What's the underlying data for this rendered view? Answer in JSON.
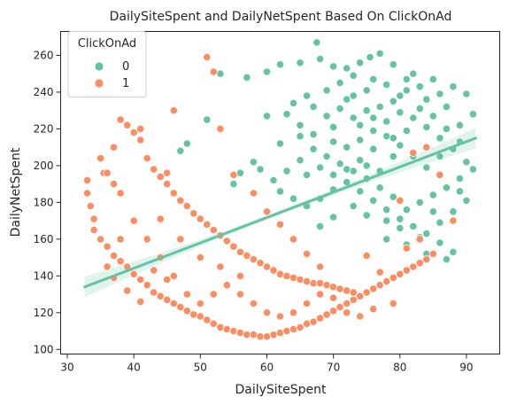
{
  "chart_data": {
    "type": "scatter",
    "title": "DailySiteSpent and DailyNetSpent Based On ClickOnAd",
    "xlabel": "DailySiteSpent",
    "ylabel": "DailyNetSpent",
    "xlim": [
      29,
      95
    ],
    "ylim": [
      97.5,
      273
    ],
    "xticks": [
      30,
      40,
      50,
      60,
      70,
      80,
      90
    ],
    "yticks": [
      100,
      120,
      140,
      160,
      180,
      200,
      220,
      240,
      260
    ],
    "grid": false,
    "legend": {
      "title": "ClickOnAd",
      "position": "top-left"
    },
    "regression_line": {
      "x": [
        32.6,
        91.4
      ],
      "y": [
        134,
        215
      ],
      "color": "#66c2a5"
    },
    "series": [
      {
        "name": "0",
        "color": "#66c2a5",
        "points": [
          [
            67.5,
            267
          ],
          [
            77,
            261
          ],
          [
            75.5,
            259
          ],
          [
            74,
            256
          ],
          [
            68,
            258
          ],
          [
            65,
            256
          ],
          [
            62,
            255
          ],
          [
            60,
            251
          ],
          [
            70,
            254
          ],
          [
            72,
            253
          ],
          [
            79,
            255
          ],
          [
            82,
            250
          ],
          [
            85,
            247
          ],
          [
            88,
            243
          ],
          [
            90,
            239
          ],
          [
            91,
            228
          ],
          [
            89,
            222
          ],
          [
            87,
            232
          ],
          [
            84,
            236
          ],
          [
            81,
            241
          ],
          [
            78,
            244
          ],
          [
            76,
            247
          ],
          [
            73,
            249
          ],
          [
            71,
            245
          ],
          [
            69,
            241
          ],
          [
            66,
            238
          ],
          [
            64,
            234
          ],
          [
            63,
            228
          ],
          [
            65,
            222
          ],
          [
            67,
            217
          ],
          [
            70,
            213
          ],
          [
            72,
            210
          ],
          [
            74,
            214
          ],
          [
            76,
            219
          ],
          [
            78,
            224
          ],
          [
            80,
            229
          ],
          [
            82,
            226
          ],
          [
            84,
            221
          ],
          [
            86,
            215
          ],
          [
            88,
            209
          ],
          [
            90,
            202
          ],
          [
            91,
            198
          ],
          [
            89,
            193
          ],
          [
            87,
            188
          ],
          [
            85,
            184
          ],
          [
            83,
            180
          ],
          [
            81,
            176
          ],
          [
            79,
            183
          ],
          [
            77,
            188
          ],
          [
            75,
            193
          ],
          [
            73,
            197
          ],
          [
            71,
            201
          ],
          [
            69,
            205
          ],
          [
            67,
            209
          ],
          [
            65,
            203
          ],
          [
            63,
            197
          ],
          [
            61,
            192
          ],
          [
            62,
            186
          ],
          [
            64,
            182
          ],
          [
            66,
            178
          ],
          [
            68,
            182
          ],
          [
            70,
            187
          ],
          [
            72,
            191
          ],
          [
            74,
            186
          ],
          [
            76,
            181
          ],
          [
            78,
            176
          ],
          [
            80,
            171
          ],
          [
            82,
            167
          ],
          [
            84,
            163
          ],
          [
            86,
            169
          ],
          [
            88,
            175
          ],
          [
            90,
            181
          ],
          [
            79,
            235
          ],
          [
            75,
            230
          ],
          [
            73,
            226
          ],
          [
            71,
            231
          ],
          [
            69,
            227
          ],
          [
            67,
            232
          ],
          [
            75,
            241
          ],
          [
            80,
            238
          ],
          [
            83,
            231
          ],
          [
            85,
            227
          ],
          [
            87,
            220
          ],
          [
            89,
            213
          ],
          [
            86,
            205
          ],
          [
            84,
            199
          ],
          [
            82,
            205
          ],
          [
            80,
            211
          ],
          [
            78,
            216
          ],
          [
            76,
            209
          ],
          [
            74,
            203
          ],
          [
            72,
            198
          ],
          [
            70,
            195
          ],
          [
            68,
            199
          ],
          [
            66,
            195
          ],
          [
            58,
            202
          ],
          [
            56,
            196
          ],
          [
            55,
            190
          ],
          [
            59,
            198
          ],
          [
            60,
            227
          ],
          [
            57,
            248
          ],
          [
            53,
            250
          ],
          [
            51,
            225
          ],
          [
            48,
            212
          ],
          [
            47,
            208
          ],
          [
            73,
            238
          ],
          [
            77,
            232
          ],
          [
            81,
            219
          ],
          [
            79,
            205
          ],
          [
            77,
            197
          ],
          [
            75,
            173
          ],
          [
            73,
            178
          ],
          [
            70,
            172
          ],
          [
            68,
            167
          ],
          [
            78,
            160
          ],
          [
            81,
            157
          ],
          [
            84,
            152
          ],
          [
            87,
            149
          ],
          [
            88,
            153
          ],
          [
            86,
            158
          ],
          [
            83,
            161
          ],
          [
            80,
            166
          ],
          [
            78,
            170
          ],
          [
            85,
            175
          ],
          [
            89,
            186
          ],
          [
            70,
            221
          ],
          [
            65,
            216
          ],
          [
            62,
            212
          ],
          [
            74,
            222
          ],
          [
            81,
            247
          ],
          [
            83,
            243
          ],
          [
            86,
            239
          ],
          [
            72,
            236
          ],
          [
            76,
            226
          ],
          [
            79,
            215
          ],
          [
            75,
            200
          ]
        ]
      },
      {
        "name": "1",
        "color": "#fc8d62",
        "points": [
          [
            33,
            192
          ],
          [
            33,
            185
          ],
          [
            33.5,
            178
          ],
          [
            34,
            171
          ],
          [
            34,
            165
          ],
          [
            35,
            160
          ],
          [
            35.5,
            196
          ],
          [
            36,
            196
          ],
          [
            37,
            190
          ],
          [
            38,
            185
          ],
          [
            36,
            156
          ],
          [
            37,
            151
          ],
          [
            38,
            148
          ],
          [
            39,
            145
          ],
          [
            40,
            141
          ],
          [
            41,
            138
          ],
          [
            42,
            135
          ],
          [
            43,
            131
          ],
          [
            44,
            129
          ],
          [
            45,
            127
          ],
          [
            46,
            125
          ],
          [
            47,
            123
          ],
          [
            48,
            121
          ],
          [
            49,
            119
          ],
          [
            50,
            118
          ],
          [
            51,
            116
          ],
          [
            52,
            114
          ],
          [
            53,
            112
          ],
          [
            54,
            111
          ],
          [
            55,
            110
          ],
          [
            56,
            109
          ],
          [
            57,
            108
          ],
          [
            58,
            108
          ],
          [
            59,
            107
          ],
          [
            60,
            107
          ],
          [
            61,
            108
          ],
          [
            62,
            109
          ],
          [
            63,
            110
          ],
          [
            64,
            111
          ],
          [
            65,
            112
          ],
          [
            66,
            114
          ],
          [
            67,
            115
          ],
          [
            68,
            117
          ],
          [
            69,
            119
          ],
          [
            70,
            121
          ],
          [
            71,
            123
          ],
          [
            72,
            125
          ],
          [
            73,
            127
          ],
          [
            74,
            129
          ],
          [
            75,
            131
          ],
          [
            76,
            133
          ],
          [
            77,
            135
          ],
          [
            78,
            137
          ],
          [
            79,
            139
          ],
          [
            80,
            141
          ],
          [
            81,
            143
          ],
          [
            82,
            145
          ],
          [
            83,
            147
          ],
          [
            84,
            149
          ],
          [
            85,
            152
          ],
          [
            38,
            225
          ],
          [
            39,
            222
          ],
          [
            40,
            218
          ],
          [
            41,
            214
          ],
          [
            42,
            204
          ],
          [
            43,
            198
          ],
          [
            44,
            194
          ],
          [
            45,
            190
          ],
          [
            46,
            185
          ],
          [
            47,
            181
          ],
          [
            48,
            178
          ],
          [
            49,
            174
          ],
          [
            50,
            171
          ],
          [
            51,
            168
          ],
          [
            52,
            165
          ],
          [
            53,
            162
          ],
          [
            54,
            159
          ],
          [
            55,
            156
          ],
          [
            56,
            153
          ],
          [
            57,
            151
          ],
          [
            58,
            149
          ],
          [
            59,
            147
          ],
          [
            60,
            145
          ],
          [
            61,
            143
          ],
          [
            62,
            141
          ],
          [
            63,
            140
          ],
          [
            64,
            139
          ],
          [
            65,
            138
          ],
          [
            66,
            137
          ],
          [
            67,
            136
          ],
          [
            68,
            136
          ],
          [
            69,
            135
          ],
          [
            70,
            134
          ],
          [
            71,
            133
          ],
          [
            72,
            132
          ],
          [
            73,
            131
          ],
          [
            36,
            145
          ],
          [
            38,
            160
          ],
          [
            40,
            170
          ],
          [
            42,
            160
          ],
          [
            44,
            150
          ],
          [
            46,
            140
          ],
          [
            48,
            130
          ],
          [
            50,
            125
          ],
          [
            52,
            130
          ],
          [
            54,
            135
          ],
          [
            56,
            130
          ],
          [
            58,
            125
          ],
          [
            60,
            120
          ],
          [
            62,
            118
          ],
          [
            64,
            120
          ],
          [
            66,
            125
          ],
          [
            68,
            130
          ],
          [
            70,
            128
          ],
          [
            72,
            120
          ],
          [
            74,
            118
          ],
          [
            76,
            122
          ],
          [
            46,
            230
          ],
          [
            51,
            259
          ],
          [
            52,
            251
          ],
          [
            53,
            220
          ],
          [
            41,
            220
          ],
          [
            35,
            204
          ],
          [
            37,
            210
          ],
          [
            45,
            196
          ],
          [
            55,
            195
          ],
          [
            58,
            185
          ],
          [
            60,
            175
          ],
          [
            62,
            168
          ],
          [
            64,
            160
          ],
          [
            66,
            152
          ],
          [
            68,
            145
          ],
          [
            75,
            151
          ],
          [
            80,
            181
          ],
          [
            82,
            207
          ],
          [
            84,
            210
          ],
          [
            86,
            195
          ],
          [
            88,
            170
          ],
          [
            83,
            160
          ],
          [
            81,
            155
          ],
          [
            77,
            142
          ],
          [
            79,
            125
          ],
          [
            44,
            171
          ],
          [
            47,
            160
          ],
          [
            50,
            150
          ],
          [
            53,
            145
          ],
          [
            56,
            140
          ],
          [
            43,
            143
          ],
          [
            45,
            138
          ],
          [
            41,
            126
          ],
          [
            39,
            132
          ],
          [
            37,
            139
          ]
        ]
      }
    ]
  }
}
